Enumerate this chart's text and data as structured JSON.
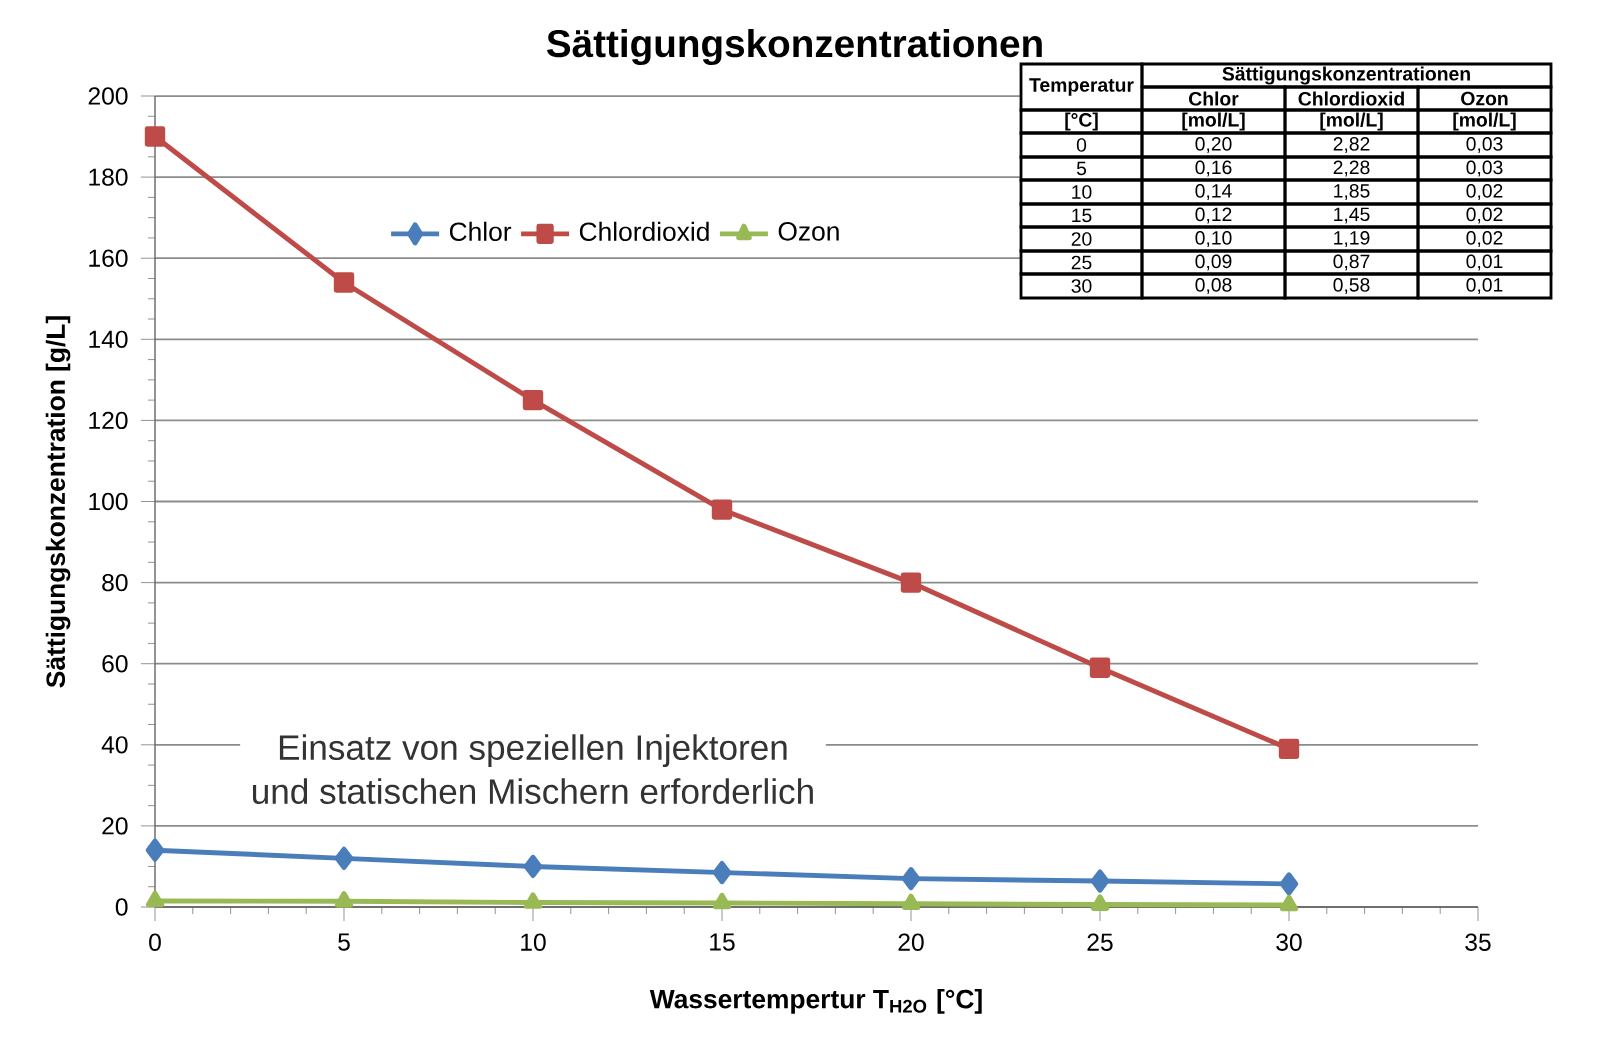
{
  "chart_data": {
    "type": "line",
    "title": "Sättigungskonzentrationen",
    "xlabel": "Wassertempertur T$_{H2O}$ [°C]",
    "ylabel": "Sättigungskonzentration [g/L]",
    "x": [
      0,
      5,
      10,
      15,
      20,
      25,
      30
    ],
    "series": [
      {
        "name": "Chlor",
        "color": "#4a7ebb",
        "marker": "diamond",
        "values": [
          14,
          12,
          10,
          8.5,
          7,
          6.4,
          5.7
        ]
      },
      {
        "name": "Chlordioxid",
        "color": "#be4b48",
        "marker": "square",
        "values": [
          190,
          154,
          125,
          98,
          80,
          59,
          39
        ]
      },
      {
        "name": "Ozon",
        "color": "#98b954",
        "marker": "triangle",
        "values": [
          1.5,
          1.4,
          1.1,
          1,
          0.8,
          0.6,
          0.5
        ]
      }
    ],
    "xlim": [
      0,
      35
    ],
    "xticks": [
      0,
      5,
      10,
      15,
      20,
      25,
      30,
      35
    ],
    "ylim": [
      0,
      200
    ],
    "yticks": [
      0,
      20,
      40,
      60,
      80,
      100,
      120,
      140,
      160,
      180,
      200
    ],
    "grid": "y",
    "legend": "top",
    "line_style": "solid",
    "annotations": [
      "Einsatz von speziellen Injektoren",
      "und statischen Mischern erforderlich",
      "Sättigungskonzentrationen",
      "Temperatur",
      "Chlor",
      "Chlordioxid",
      "Ozon",
      "[°C]",
      "[mol/L]",
      "[mol/L]",
      "[mol/L]",
      "0",
      "0,20",
      "2,82",
      "0,03",
      "5",
      "0,16",
      "2,28",
      "0,03",
      "10",
      "0,14",
      "1,85",
      "0,02",
      "15",
      "0,12",
      "1,45",
      "0,02",
      "20",
      "0,10",
      "1,19",
      "0,02",
      "25",
      "0,09",
      "0,87",
      "0,01",
      "30",
      "0,08",
      "0,58",
      "0,01"
    ]
  }
}
